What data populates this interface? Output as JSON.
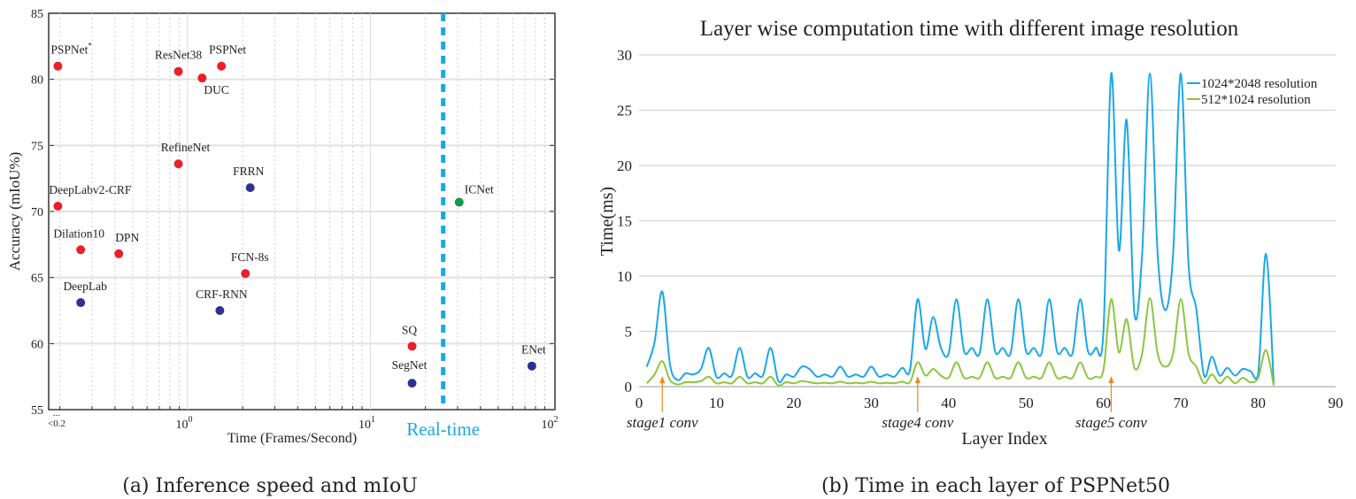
{
  "chart_data": [
    {
      "type": "scatter",
      "caption": "(a) Inference speed and mIoU",
      "xlabel": "Time (Frames/Second)",
      "ylabel": "Accuracy (mIoU%)",
      "xscale": "log",
      "xlim": [
        0.17,
        100
      ],
      "ylim": [
        55,
        85
      ],
      "yticks": [
        55,
        60,
        65,
        70,
        75,
        80,
        85
      ],
      "xtick_labels": [
        {
          "value": 0.2,
          "label": "<0.2",
          "extra": "..."
        },
        {
          "value": 1,
          "base": "10",
          "exp": "0"
        },
        {
          "value": 10,
          "base": "10",
          "exp": "1"
        },
        {
          "value": 100,
          "base": "10",
          "exp": "2"
        }
      ],
      "grid": true,
      "realtime": {
        "x": 25,
        "label": "Real-time",
        "color": "#1aa7e8"
      },
      "colors": {
        "red": "#e8202a",
        "blue": "#2e3192",
        "green": "#109a48"
      },
      "points": [
        {
          "name": "PSPNet",
          "sup": "*",
          "x": 0.195,
          "y": 81.0,
          "color": "red",
          "lx": 0,
          "ly": -14,
          "anchor": "start",
          "dx": -8
        },
        {
          "name": "ResNet38",
          "x": 0.89,
          "y": 80.6,
          "color": "red",
          "anchor": "middle",
          "dx": 0,
          "ly": -14
        },
        {
          "name": "DUC",
          "x": 1.2,
          "y": 80.1,
          "color": "red",
          "anchor": "start",
          "dx": 2,
          "ly": 18
        },
        {
          "name": "PSPNet",
          "x": 1.53,
          "y": 81.0,
          "color": "red",
          "anchor": "start",
          "dx": -14,
          "ly": -14
        },
        {
          "name": "RefineNet",
          "x": 0.89,
          "y": 73.6,
          "color": "red",
          "anchor": "middle",
          "dx": 8,
          "ly": -14
        },
        {
          "name": "FRRN",
          "x": 2.2,
          "y": 71.8,
          "color": "blue",
          "anchor": "middle",
          "dx": -2,
          "ly": -14
        },
        {
          "name": "DeepLabv2-CRF",
          "x": 0.195,
          "y": 70.4,
          "color": "red",
          "anchor": "start",
          "dx": -10,
          "ly": -14
        },
        {
          "name": "ICNet",
          "x": 30.6,
          "y": 70.7,
          "color": "green",
          "anchor": "start",
          "dx": 6,
          "ly": -10
        },
        {
          "name": "Dilation10",
          "x": 0.26,
          "y": 67.1,
          "color": "red",
          "anchor": "middle",
          "dx": -2,
          "ly": -14
        },
        {
          "name": "DPN",
          "x": 0.42,
          "y": 66.8,
          "color": "red",
          "anchor": "start",
          "dx": -4,
          "ly": -14
        },
        {
          "name": "FCN-8s",
          "x": 2.07,
          "y": 65.3,
          "color": "red",
          "anchor": "middle",
          "dx": 5,
          "ly": -14
        },
        {
          "name": "DeepLab",
          "x": 0.26,
          "y": 63.1,
          "color": "blue",
          "anchor": "middle",
          "dx": 5,
          "ly": -14
        },
        {
          "name": "CRF-RNN",
          "x": 1.5,
          "y": 62.5,
          "color": "blue",
          "anchor": "middle",
          "dx": 2,
          "ly": -14
        },
        {
          "name": "SQ",
          "x": 16.9,
          "y": 59.8,
          "color": "red",
          "anchor": "middle",
          "dx": -3,
          "ly": -14
        },
        {
          "name": "SegNet",
          "x": 16.9,
          "y": 57.0,
          "color": "blue",
          "anchor": "middle",
          "dx": -3,
          "ly": -16
        },
        {
          "name": "ENet",
          "x": 76.4,
          "y": 58.3,
          "color": "blue",
          "anchor": "middle",
          "dx": 2,
          "ly": -14
        }
      ]
    },
    {
      "type": "line",
      "title": "Layer wise computation time with different image resolution",
      "caption": "(b) Time in each layer of PSPNet50",
      "xlabel": "Layer Index",
      "ylabel": "Time(ms)",
      "xlim": [
        0,
        90
      ],
      "ylim": [
        0,
        30
      ],
      "xticks": [
        0,
        10,
        20,
        30,
        40,
        50,
        60,
        70,
        80,
        90
      ],
      "yticks": [
        0,
        5,
        10,
        15,
        20,
        25,
        30
      ],
      "grid": "horizontal",
      "legend": "top-right",
      "annotations": [
        {
          "x": 3,
          "label": "stage1 conv"
        },
        {
          "x": 36,
          "label": "stage4 conv"
        },
        {
          "x": 61,
          "label": "stage5 conv"
        }
      ],
      "annotation_color": "#f58220",
      "x_start": 1,
      "series": [
        {
          "name": "1024*2048 resolution",
          "color": "#1aa7e8",
          "values": [
            1.8,
            4,
            8.6,
            2,
            0.6,
            1.2,
            1.1,
            1.6,
            3.5,
            0.9,
            1.2,
            1.0,
            3.5,
            0.9,
            1.2,
            1.0,
            3.5,
            0.5,
            1.1,
            0.9,
            1.8,
            1.6,
            0.9,
            1.1,
            0.9,
            1.8,
            0.9,
            1.1,
            0.9,
            1.8,
            0.9,
            1.1,
            0.9,
            1.7,
            1.5,
            7.9,
            3.4,
            6.3,
            3.5,
            3.0,
            7.9,
            3.2,
            3.5,
            3.0,
            7.9,
            3.2,
            3.5,
            3.0,
            7.9,
            3.2,
            3.5,
            3.0,
            7.9,
            3.2,
            3.5,
            3.0,
            7.9,
            3.2,
            3.5,
            5,
            28.3,
            12.3,
            24.1,
            6.6,
            12,
            28.3,
            12,
            6.9,
            12,
            28.3,
            11,
            7,
            1.0,
            2.7,
            1.0,
            1.7,
            1.0,
            1.6,
            1.4,
            1.2,
            12,
            0.3
          ]
        },
        {
          "name": "512*1024 resolution",
          "color": "#8cc63f",
          "values": [
            0.3,
            1.1,
            2.3,
            0.6,
            0.2,
            0.4,
            0.4,
            0.5,
            0.9,
            0.3,
            0.4,
            0.3,
            0.9,
            0.3,
            0.4,
            0.3,
            0.9,
            0.1,
            0.4,
            0.3,
            0.5,
            0.4,
            0.3,
            0.35,
            0.3,
            0.45,
            0.3,
            0.35,
            0.3,
            0.45,
            0.3,
            0.35,
            0.3,
            0.45,
            0.4,
            2.2,
            1.0,
            1.6,
            1.0,
            0.8,
            2.2,
            0.8,
            0.9,
            0.8,
            2.2,
            0.8,
            0.9,
            0.8,
            2.2,
            0.8,
            0.9,
            0.8,
            2.2,
            0.8,
            0.9,
            0.8,
            2.2,
            0.8,
            0.9,
            1.5,
            7.9,
            3.1,
            6.1,
            1.7,
            3,
            8.0,
            3,
            1.8,
            3,
            7.9,
            3,
            1.8,
            0.3,
            1.1,
            0.3,
            0.9,
            0.3,
            0.8,
            0.4,
            0.8,
            3.3,
            0.1
          ]
        }
      ]
    }
  ]
}
